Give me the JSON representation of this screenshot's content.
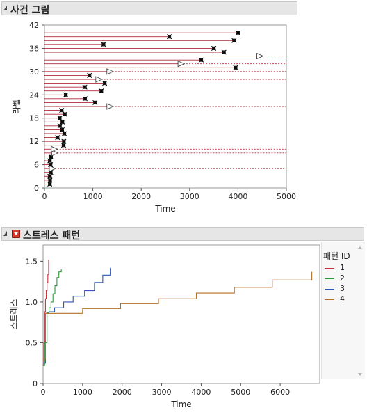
{
  "section1": {
    "title": "사건 그림"
  },
  "section2": {
    "title": "스트레스 패턴"
  },
  "chart_data": [
    {
      "type": "event-plot",
      "title": "",
      "xlabel": "Time",
      "ylabel": "라벨",
      "xlim": [
        0,
        5000
      ],
      "ylim": [
        0,
        42
      ],
      "xticks": [
        0,
        1000,
        2000,
        3000,
        4000,
        5000
      ],
      "yticks": [
        0,
        6,
        12,
        18,
        24,
        30,
        36,
        42
      ],
      "colors": {
        "line": "#b0283a",
        "ref": "#b0283a",
        "marker": "#000000",
        "censor": "#b0283a"
      },
      "units": [
        {
          "label": 1,
          "end": 110,
          "kind": "event"
        },
        {
          "label": 2,
          "end": 115,
          "kind": "event"
        },
        {
          "label": 3,
          "end": 110,
          "kind": "event"
        },
        {
          "label": 4,
          "end": 130,
          "kind": "event"
        },
        {
          "label": 5,
          "end": 100,
          "kind": "censored",
          "dashed": true
        },
        {
          "label": 6,
          "end": 125,
          "kind": "event"
        },
        {
          "label": 7,
          "end": 110,
          "kind": "event"
        },
        {
          "label": 8,
          "end": 135,
          "kind": "event"
        },
        {
          "label": 9,
          "end": 150,
          "kind": "censored",
          "dashed": true
        },
        {
          "label": 10,
          "end": 140,
          "kind": "censored",
          "dashed": true
        },
        {
          "label": 11,
          "end": 395,
          "kind": "event"
        },
        {
          "label": 12,
          "end": 400,
          "kind": "event"
        },
        {
          "label": 13,
          "end": 270,
          "kind": "event"
        },
        {
          "label": 14,
          "end": 410,
          "kind": "event"
        },
        {
          "label": 15,
          "end": 365,
          "kind": "event"
        },
        {
          "label": 16,
          "end": 320,
          "kind": "event"
        },
        {
          "label": 17,
          "end": 370,
          "kind": "event"
        },
        {
          "label": 18,
          "end": 315,
          "kind": "event"
        },
        {
          "label": 19,
          "end": 420,
          "kind": "event"
        },
        {
          "label": 20,
          "end": 355,
          "kind": "event"
        },
        {
          "label": 21,
          "end": 1290,
          "kind": "censored",
          "dashed": true
        },
        {
          "label": 22,
          "end": 1045,
          "kind": "event"
        },
        {
          "label": 23,
          "end": 840,
          "kind": "event"
        },
        {
          "label": 24,
          "end": 440,
          "kind": "event"
        },
        {
          "label": 25,
          "end": 1175,
          "kind": "event"
        },
        {
          "label": 26,
          "end": 835,
          "kind": "event"
        },
        {
          "label": 27,
          "end": 1245,
          "kind": "event"
        },
        {
          "label": 28,
          "end": 1060,
          "kind": "censored",
          "dashed": true
        },
        {
          "label": 29,
          "end": 930,
          "kind": "event"
        },
        {
          "label": 30,
          "end": 1290,
          "kind": "censored",
          "dashed": true
        },
        {
          "label": 31,
          "end": 3950,
          "kind": "event"
        },
        {
          "label": 32,
          "end": 2760,
          "kind": "censored",
          "dashed": true
        },
        {
          "label": 33,
          "end": 3240,
          "kind": "event"
        },
        {
          "label": 34,
          "end": 4390,
          "kind": "censored",
          "dashed": true
        },
        {
          "label": 35,
          "end": 3710,
          "kind": "event"
        },
        {
          "label": 36,
          "end": 3500,
          "kind": "event"
        },
        {
          "label": 37,
          "end": 1220,
          "kind": "event"
        },
        {
          "label": 38,
          "end": 3920,
          "kind": "event"
        },
        {
          "label": 39,
          "end": 2580,
          "kind": "event"
        },
        {
          "label": 40,
          "end": 4000,
          "kind": "event"
        }
      ]
    },
    {
      "type": "step",
      "title": "",
      "xlabel": "Time",
      "ylabel": "스트레스",
      "xlim": [
        0,
        7000
      ],
      "ylim": [
        0,
        1.7
      ],
      "xticks": [
        0,
        1000,
        2000,
        3000,
        4000,
        5000,
        6000
      ],
      "yticks": [
        0,
        0.5,
        1.0,
        1.5
      ],
      "ytick_labels": [
        "0",
        "0.5",
        "1.0",
        "1.5"
      ],
      "legend_title": "패턴 ID",
      "series": [
        {
          "name": "1",
          "color": "#c8323c",
          "x": [
            0,
            20,
            40,
            60,
            80,
            100,
            120,
            140
          ],
          "y": [
            0.22,
            0.5,
            0.88,
            1.04,
            1.14,
            1.24,
            1.34,
            1.52
          ]
        },
        {
          "name": "2",
          "color": "#2f9a3a",
          "x": [
            0,
            40,
            100,
            150,
            200,
            250,
            300,
            350,
            400,
            460
          ],
          "y": [
            0.22,
            0.5,
            0.87,
            0.93,
            1.0,
            1.1,
            1.2,
            1.3,
            1.37,
            1.4
          ]
        },
        {
          "name": "3",
          "color": "#2f55b8",
          "x": [
            0,
            60,
            150,
            290,
            520,
            760,
            1050,
            1300,
            1510,
            1700
          ],
          "y": [
            0.25,
            0.86,
            0.88,
            0.93,
            1.0,
            1.07,
            1.14,
            1.24,
            1.33,
            1.42
          ]
        },
        {
          "name": "4",
          "color": "#b07022",
          "x": [
            0,
            60,
            1000,
            1960,
            2920,
            3880,
            4840,
            5800,
            6800
          ],
          "y": [
            0.3,
            0.86,
            0.92,
            0.98,
            1.04,
            1.11,
            1.18,
            1.27,
            1.37
          ]
        }
      ]
    }
  ]
}
